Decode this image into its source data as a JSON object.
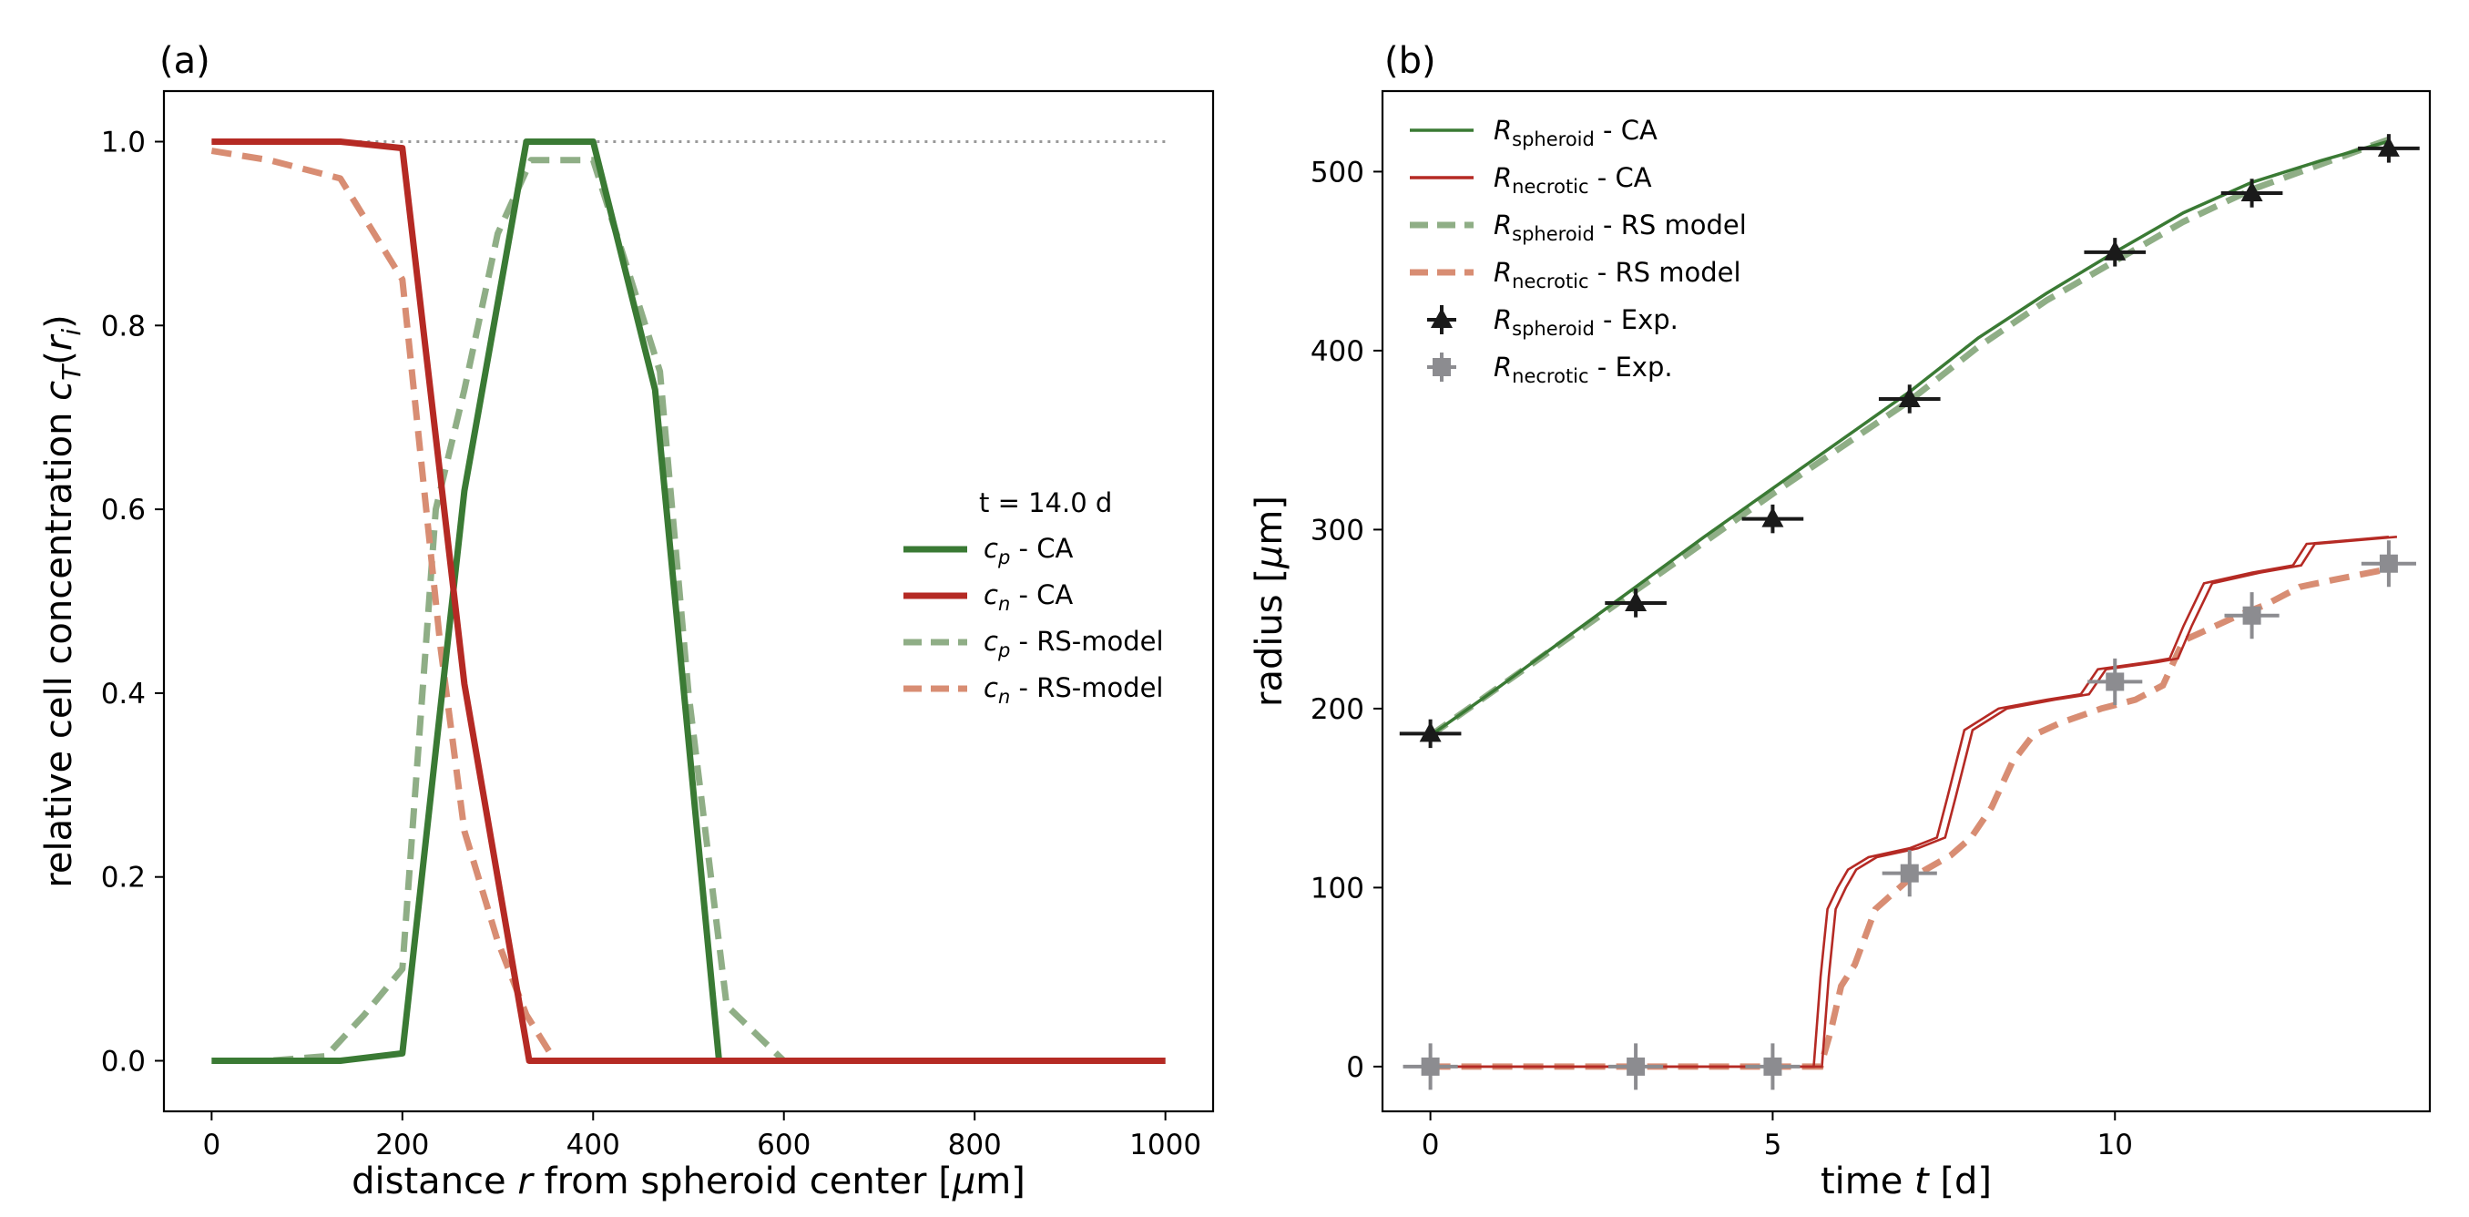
{
  "chart_data": [
    {
      "type": "line",
      "panel_label": "(a)",
      "xlabel_parts": [
        "distance ",
        "r",
        " from spheroid center [",
        "μ",
        "m]"
      ],
      "ylabel_parts": [
        "relative cell concentration ",
        "c",
        "T",
        "(",
        "r",
        "i",
        ")"
      ],
      "xlim": [
        -50,
        1050
      ],
      "ylim": [
        -0.055,
        1.055
      ],
      "xticks": [
        0,
        200,
        400,
        600,
        800,
        1000
      ],
      "yticks": [
        0.0,
        0.2,
        0.4,
        0.6,
        0.8,
        1.0
      ],
      "xtick_labels": [
        "0",
        "200",
        "400",
        "600",
        "800",
        "1000"
      ],
      "ytick_labels": [
        "0.0",
        "0.2",
        "0.4",
        "0.6",
        "0.8",
        "1.0"
      ],
      "grid": false,
      "reference_line": {
        "y": 1.0,
        "x": [
          0,
          1000
        ],
        "color": "#999999",
        "style": "dotted"
      },
      "legend": {
        "placement": "center-right",
        "title": "t = 14.0 d"
      },
      "series": [
        {
          "name": "c_p - CA",
          "label_var": "c",
          "label_sub": "p",
          "label_rest": " - CA",
          "color": "#3a7a34",
          "style": "solid",
          "x": [
            0,
            135,
            200,
            265,
            330,
            400,
            465,
            532,
            600,
            1000
          ],
          "y": [
            0,
            0,
            0.008,
            0.62,
            1.0,
            1.0,
            0.73,
            0.0,
            0.0,
            0.0
          ]
        },
        {
          "name": "c_n - CA",
          "label_var": "c",
          "label_sub": "n",
          "label_rest": " - CA",
          "color": "#b52a24",
          "style": "solid",
          "x": [
            0,
            135,
            200,
            265,
            333,
            400,
            600,
            1000
          ],
          "y": [
            1.0,
            1.0,
            0.993,
            0.41,
            0.0,
            0.0,
            0.0,
            0.0
          ]
        },
        {
          "name": "c_p - RS-model",
          "label_var": "c",
          "label_sub": "p",
          "label_rest": " - RS-model",
          "color": "#8fae86",
          "style": "dashed",
          "x": [
            0,
            60,
            120,
            160,
            200,
            235,
            265,
            300,
            335,
            400,
            470,
            500,
            540,
            600,
            640,
            1000
          ],
          "y": [
            0,
            0,
            0.005,
            0.05,
            0.1,
            0.6,
            0.73,
            0.9,
            0.98,
            0.98,
            0.75,
            0.4,
            0.06,
            0.0,
            0.0,
            0.0
          ]
        },
        {
          "name": "c_n - RS-model",
          "label_var": "c",
          "label_sub": "n",
          "label_rest": " - RS-model",
          "color": "#d88d73",
          "style": "dashed",
          "x": [
            0,
            60,
            135,
            200,
            240,
            265,
            300,
            330,
            360,
            400,
            600,
            1000
          ],
          "y": [
            0.99,
            0.98,
            0.96,
            0.85,
            0.45,
            0.25,
            0.13,
            0.05,
            0.0,
            0.0,
            0.0,
            0.0
          ]
        }
      ]
    },
    {
      "type": "line",
      "panel_label": "(b)",
      "xlabel_parts": [
        "time ",
        "t",
        " [d]"
      ],
      "ylabel_parts": [
        "radius [",
        "μ",
        "m]"
      ],
      "xlim": [
        -0.7,
        14.6
      ],
      "ylim": [
        -25,
        545
      ],
      "xticks": [
        0,
        5,
        10
      ],
      "yticks": [
        0,
        100,
        200,
        300,
        400,
        500
      ],
      "xtick_labels": [
        "0",
        "5",
        "10"
      ],
      "ytick_labels": [
        "0",
        "100",
        "200",
        "300",
        "400",
        "500"
      ],
      "grid": false,
      "legend": {
        "placement": "top-left"
      },
      "series": [
        {
          "name": "R_spheroid - CA",
          "label_var": "R",
          "label_sub": "spheroid",
          "label_rest": " - CA",
          "color": "#3a7a34",
          "style": "solid",
          "x": [
            0,
            1,
            2,
            3,
            4,
            5,
            6,
            7,
            8,
            9,
            10,
            11,
            12,
            13,
            14
          ],
          "y": [
            185,
            212,
            240,
            268,
            296,
            323,
            350,
            377,
            407,
            432,
            455,
            477,
            494,
            506,
            517
          ]
        },
        {
          "name": "R_necrotic - CA",
          "label_var": "R",
          "label_sub": "necrotic",
          "label_rest": " - CA",
          "color": "#b52a24",
          "style": "solid",
          "double_line": true,
          "x": [
            0,
            5.4,
            5.6,
            5.7,
            5.8,
            5.95,
            6.1,
            6.4,
            7.0,
            7.4,
            7.55,
            7.8,
            8.3,
            9.0,
            9.5,
            9.75,
            10.5,
            10.8,
            11.0,
            11.3,
            12.0,
            12.6,
            12.8,
            14.0
          ],
          "y": [
            0,
            0,
            0,
            50,
            88,
            100,
            110,
            117,
            122,
            128,
            150,
            188,
            200,
            205,
            208,
            222,
            226,
            228,
            246,
            270,
            276,
            280,
            292,
            296
          ]
        },
        {
          "name": "R_spheroid - RS model",
          "label_var": "R",
          "label_sub": "spheroid",
          "label_rest": " - RS model",
          "color": "#8fae86",
          "style": "dashed",
          "x": [
            0,
            1,
            2,
            3,
            4,
            5,
            6,
            7,
            8,
            9,
            10,
            11,
            12,
            13,
            14
          ],
          "y": [
            185,
            212,
            239,
            266,
            293,
            320,
            346,
            372,
            402,
            428,
            450,
            472,
            490,
            504,
            518
          ]
        },
        {
          "name": "R_necrotic - RS model",
          "label_var": "R",
          "label_sub": "necrotic",
          "label_rest": " - RS model",
          "color": "#d88d73",
          "style": "dashed",
          "x": [
            0,
            5.7,
            5.85,
            6.0,
            6.2,
            6.5,
            7.0,
            7.6,
            7.9,
            8.2,
            8.5,
            8.8,
            9.2,
            9.8,
            10.3,
            10.7,
            11.0,
            11.4,
            11.8,
            12.2,
            12.7,
            13.2,
            14.0
          ],
          "y": [
            0,
            0,
            20,
            45,
            57,
            88,
            105,
            118,
            128,
            145,
            170,
            185,
            192,
            200,
            205,
            213,
            238,
            245,
            252,
            258,
            268,
            272,
            278
          ]
        },
        {
          "name": "R_spheroid - Exp.",
          "label_var": "R",
          "label_sub": "spheroid",
          "label_rest": " - Exp.",
          "color": "#1a1a1a",
          "style": "marker",
          "marker": "triangle",
          "xerr": 0.45,
          "yerr": 8,
          "x": [
            0,
            3,
            5,
            7,
            10,
            12,
            14
          ],
          "y": [
            186,
            259,
            306,
            373,
            455,
            488,
            513
          ]
        },
        {
          "name": "R_necrotic - Exp.",
          "label_var": "R",
          "label_sub": "necrotic",
          "label_rest": " - Exp.",
          "color": "#8c8c90",
          "style": "marker",
          "marker": "plus",
          "xerr": 0.4,
          "yerr": 13,
          "x": [
            0,
            3,
            5,
            7,
            10,
            12,
            14
          ],
          "y": [
            0,
            0,
            0,
            108,
            215,
            252,
            281
          ]
        }
      ]
    }
  ]
}
